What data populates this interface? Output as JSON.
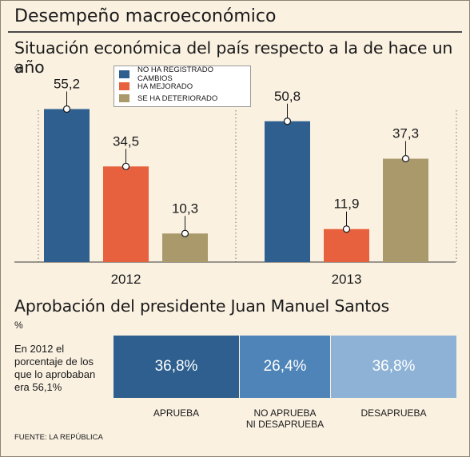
{
  "header": {
    "title": "Desempeño macroeconómico"
  },
  "section1": {
    "title": "Situación económica del país respecto a la de hace un año",
    "unit": "%"
  },
  "legend": [
    {
      "label": "NO HA REGISTRADO CAMBIOS",
      "color": "#2e5f8e"
    },
    {
      "label": "HA MEJORADO",
      "color": "#e8613e"
    },
    {
      "label": "SE HA DETERIORADO",
      "color": "#a9996b"
    }
  ],
  "chart_data": [
    {
      "type": "bar",
      "title": "Situación económica del país respecto a la de hace un año",
      "ylabel": "%",
      "categories": [
        "2012",
        "2013"
      ],
      "series": [
        {
          "name": "NO HA REGISTRADO CAMBIOS",
          "values": [
            55.2,
            50.8
          ],
          "labels": [
            "55,2",
            "50,8"
          ],
          "color": "#2e5f8e"
        },
        {
          "name": "HA MEJORADO",
          "values": [
            34.5,
            11.9
          ],
          "labels": [
            "34,5",
            "11,9"
          ],
          "color": "#e8613e"
        },
        {
          "name": "SE HA DETERIORADO",
          "values": [
            10.3,
            37.3
          ],
          "labels": [
            "10,3",
            "37,3"
          ],
          "color": "#a9996b"
        }
      ],
      "ylim": [
        0,
        60
      ]
    },
    {
      "type": "bar",
      "title": "Aprobación del presidente Juan Manuel Santos",
      "ylabel": "%",
      "orientation": "horizontal-stacked",
      "segments": [
        {
          "name": "APRUEBA",
          "value": 36.8,
          "label": "36,8%",
          "color": "#2e5f8e"
        },
        {
          "name": "NO APRUEBA NI DESAPRUEBA",
          "value": 26.4,
          "label": "26,4%",
          "color": "#4f84b9"
        },
        {
          "name": "DESAPRUEBA",
          "value": 36.8,
          "label": "36,8%",
          "color": "#8eb2d6"
        }
      ]
    }
  ],
  "section2": {
    "title": "Aprobación del presidente Juan Manuel Santos",
    "unit": "%",
    "note": "En 2012 el porcentaje de los que lo aprobaban era 56,1%",
    "segment_labels": [
      "APRUEBA",
      "NO APRUEBA\nNI DESAPRUEBA",
      "DESAPRUEBA"
    ]
  },
  "source": "FUENTE: LA REPÚBLICA"
}
